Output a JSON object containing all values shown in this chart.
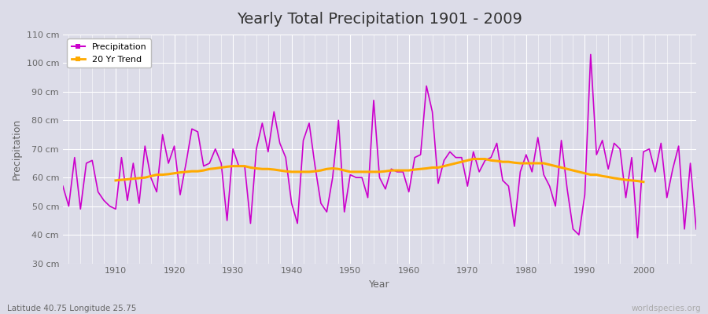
{
  "title": "Yearly Total Precipitation 1901 - 2009",
  "xlabel": "Year",
  "ylabel": "Precipitation",
  "subtitle": "Latitude 40.75 Longitude 25.75",
  "watermark": "worldspecies.org",
  "years": [
    1901,
    1902,
    1903,
    1904,
    1905,
    1906,
    1907,
    1908,
    1909,
    1910,
    1911,
    1912,
    1913,
    1914,
    1915,
    1916,
    1917,
    1918,
    1919,
    1920,
    1921,
    1922,
    1923,
    1924,
    1925,
    1926,
    1927,
    1928,
    1929,
    1930,
    1931,
    1932,
    1933,
    1934,
    1935,
    1936,
    1937,
    1938,
    1939,
    1940,
    1941,
    1942,
    1943,
    1944,
    1945,
    1946,
    1947,
    1948,
    1949,
    1950,
    1951,
    1952,
    1953,
    1954,
    1955,
    1956,
    1957,
    1958,
    1959,
    1960,
    1961,
    1962,
    1963,
    1964,
    1965,
    1966,
    1967,
    1968,
    1969,
    1970,
    1971,
    1972,
    1973,
    1974,
    1975,
    1976,
    1977,
    1978,
    1979,
    1980,
    1981,
    1982,
    1983,
    1984,
    1985,
    1986,
    1987,
    1988,
    1989,
    1990,
    1991,
    1992,
    1993,
    1994,
    1995,
    1996,
    1997,
    1998,
    1999,
    2000,
    2001,
    2002,
    2003,
    2004,
    2005,
    2006,
    2007,
    2008,
    2009
  ],
  "precipitation": [
    57,
    50,
    67,
    49,
    65,
    66,
    55,
    52,
    50,
    49,
    67,
    52,
    65,
    51,
    71,
    60,
    55,
    75,
    65,
    71,
    54,
    65,
    77,
    76,
    64,
    65,
    70,
    65,
    45,
    70,
    64,
    64,
    44,
    70,
    79,
    69,
    83,
    72,
    67,
    51,
    44,
    73,
    79,
    64,
    51,
    48,
    60,
    80,
    48,
    61,
    60,
    60,
    53,
    87,
    60,
    56,
    63,
    62,
    62,
    55,
    67,
    68,
    92,
    83,
    58,
    66,
    69,
    67,
    67,
    57,
    69,
    62,
    66,
    67,
    72,
    59,
    57,
    43,
    62,
    68,
    62,
    74,
    61,
    57,
    50,
    73,
    56,
    42,
    40,
    54,
    103,
    68,
    73,
    63,
    72,
    70,
    53,
    67,
    39,
    69,
    70,
    62,
    72,
    53,
    63,
    71,
    42,
    65,
    42
  ],
  "trend_years": [
    1910,
    1911,
    1912,
    1913,
    1914,
    1915,
    1916,
    1917,
    1918,
    1919,
    1920,
    1921,
    1922,
    1923,
    1924,
    1925,
    1926,
    1927,
    1928,
    1929,
    1930,
    1931,
    1932,
    1933,
    1934,
    1935,
    1936,
    1937,
    1938,
    1939,
    1940,
    1941,
    1942,
    1943,
    1944,
    1945,
    1946,
    1947,
    1948,
    1949,
    1950,
    1951,
    1952,
    1953,
    1954,
    1955,
    1956,
    1957,
    1958,
    1959,
    1960,
    1961,
    1962,
    1963,
    1964,
    1965,
    1966,
    1967,
    1968,
    1969,
    1970,
    1971,
    1972,
    1973,
    1974,
    1975,
    1976,
    1977,
    1978,
    1979,
    1980,
    1981,
    1982,
    1983,
    1984,
    1985,
    1986,
    1987,
    1988,
    1989,
    1990,
    1991,
    1992,
    1993,
    1994,
    1995,
    1996,
    1997,
    1998,
    1999,
    2000
  ],
  "trend": [
    59.0,
    59.2,
    59.4,
    59.6,
    59.8,
    60.0,
    60.5,
    61.0,
    61.0,
    61.2,
    61.5,
    61.8,
    62.0,
    62.2,
    62.2,
    62.5,
    63.0,
    63.2,
    63.5,
    63.8,
    64.0,
    64.0,
    64.0,
    63.5,
    63.2,
    63.0,
    63.0,
    62.8,
    62.5,
    62.2,
    62.0,
    62.0,
    62.0,
    62.0,
    62.2,
    62.5,
    63.0,
    63.2,
    63.0,
    62.5,
    62.0,
    62.0,
    62.0,
    62.0,
    62.0,
    62.0,
    62.2,
    62.5,
    62.5,
    62.5,
    62.5,
    62.8,
    63.0,
    63.2,
    63.5,
    63.5,
    64.0,
    64.5,
    65.0,
    65.5,
    66.0,
    66.5,
    66.5,
    66.5,
    66.0,
    65.8,
    65.5,
    65.5,
    65.2,
    65.0,
    65.0,
    65.0,
    65.0,
    65.0,
    64.5,
    64.0,
    63.5,
    63.0,
    62.5,
    62.0,
    61.5,
    61.0,
    61.0,
    60.5,
    60.2,
    59.8,
    59.5,
    59.2,
    59.0,
    58.8,
    58.5
  ],
  "precip_color": "#cc00cc",
  "trend_color": "#ffaa00",
  "bg_color": "#dcdce8",
  "plot_bg_color": "#dcdce8",
  "grid_color": "#ffffff",
  "ylim": [
    30,
    110
  ],
  "yticks": [
    30,
    40,
    50,
    60,
    70,
    80,
    90,
    100,
    110
  ],
  "ytick_labels": [
    "30 cm",
    "40 cm",
    "50 cm",
    "60 cm",
    "70 cm",
    "80 cm",
    "90 cm",
    "100 cm",
    "110 cm"
  ],
  "xticks": [
    1910,
    1920,
    1930,
    1940,
    1950,
    1960,
    1970,
    1980,
    1990,
    2000
  ],
  "xlim": [
    1901,
    2009
  ],
  "legend_items": [
    "Precipitation",
    "20 Yr Trend"
  ],
  "title_fontsize": 14,
  "axis_fontsize": 9,
  "tick_fontsize": 8
}
